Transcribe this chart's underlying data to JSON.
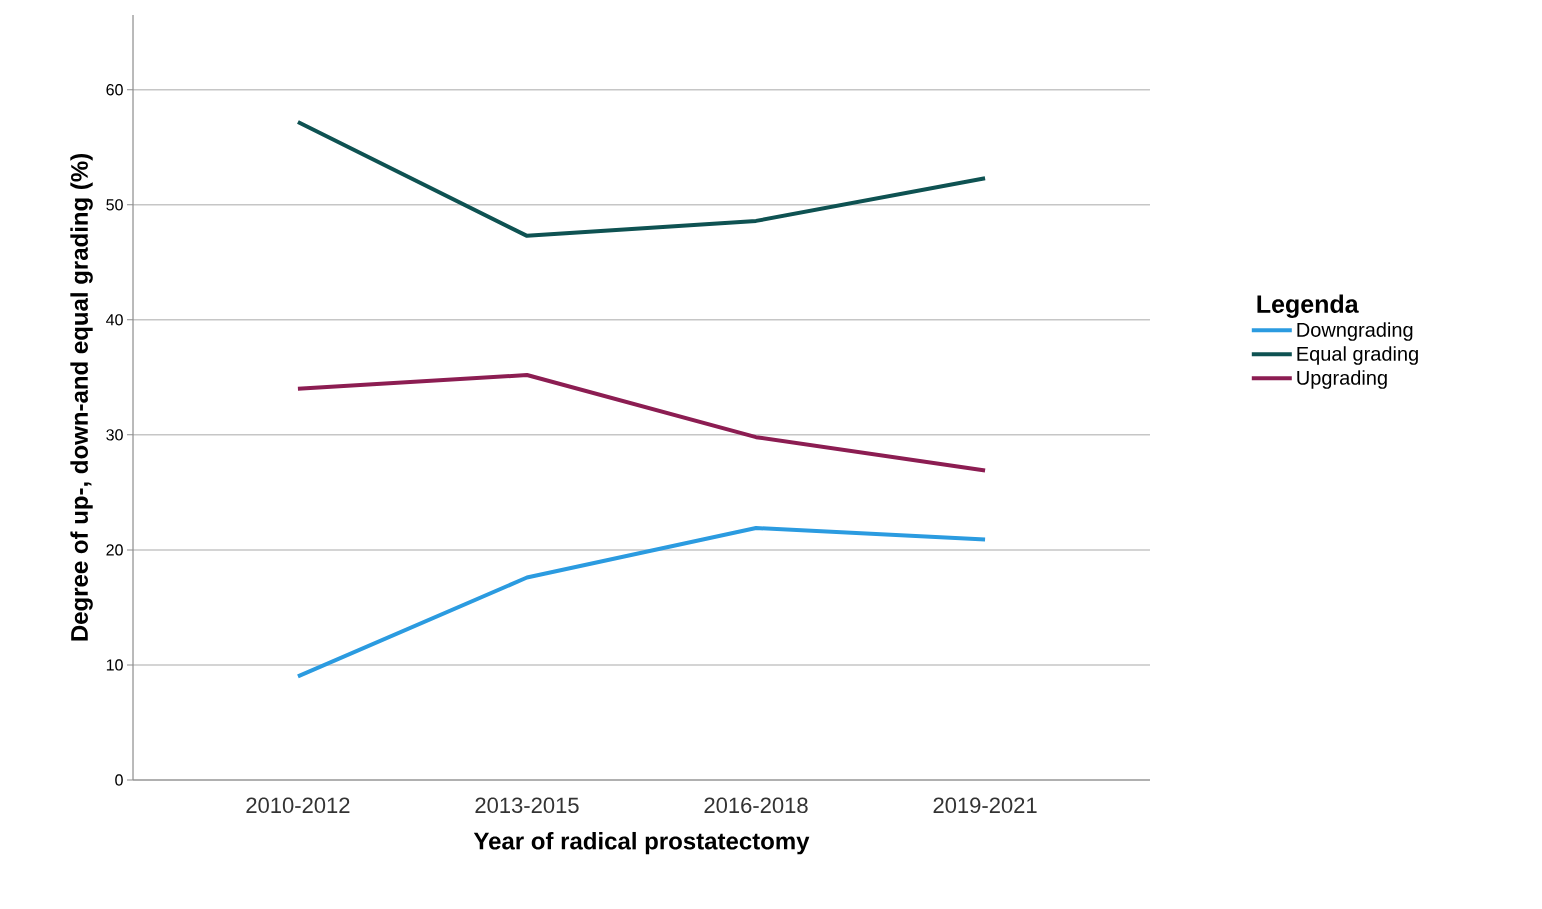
{
  "chart_data": {
    "type": "line",
    "xlabel": "Year of radical prostatectomy",
    "ylabel": "Degree of up-, down-and equal grading (%)",
    "categories": [
      "2010-2012",
      "2013-2015",
      "2016-2018",
      "2019-2021"
    ],
    "series": [
      {
        "name": "Downgrading",
        "color": "#2b9be0",
        "values": [
          9.0,
          17.6,
          21.9,
          20.9
        ]
      },
      {
        "name": "Equal grading",
        "color": "#0e5252",
        "values": [
          57.2,
          47.3,
          48.6,
          52.3
        ]
      },
      {
        "name": "Upgrading",
        "color": "#8c1d52",
        "values": [
          34.0,
          35.2,
          29.8,
          26.9
        ]
      }
    ],
    "ylim": [
      0,
      66.5
    ],
    "yticks": [
      0,
      10,
      20,
      30,
      40,
      50,
      60
    ],
    "grid": "y",
    "legend": "right",
    "legend_title": "Legenda",
    "line_style": "solid"
  }
}
